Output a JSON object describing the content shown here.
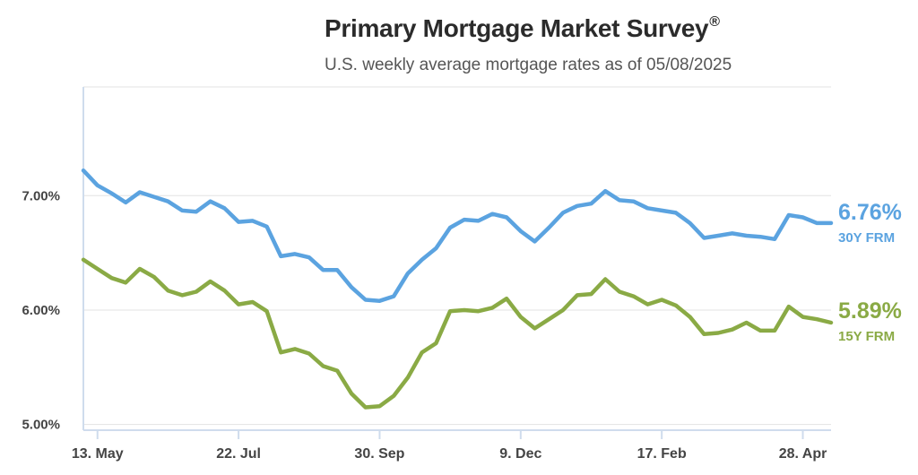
{
  "header": {
    "title": "Primary Mortgage Market Survey",
    "title_mark": "®",
    "subtitle": "U.S. weekly average mortgage rates as of 05/08/2025"
  },
  "chart_data": {
    "type": "line",
    "title": "Primary Mortgage Market Survey®",
    "subtitle": "U.S. weekly average mortgage rates as of 05/08/2025",
    "ylim": [
      4.95,
      7.95
    ],
    "yticks": [
      5.0,
      6.0,
      7.0
    ],
    "ytick_labels": [
      "5.00%",
      "6.00%",
      "7.00%"
    ],
    "xtick_labels": [
      "13. May",
      "22. Jul",
      "30. Sep",
      "9. Dec",
      "17. Feb",
      "28. Apr"
    ],
    "xtick_index": [
      1,
      11,
      21,
      31,
      41,
      51
    ],
    "grid": true,
    "series": [
      {
        "name": "30Y FRM",
        "color": "#5ba3e0",
        "end_label": "6.76%",
        "values": [
          7.22,
          7.09,
          7.02,
          6.94,
          7.03,
          6.99,
          6.95,
          6.87,
          6.86,
          6.95,
          6.89,
          6.77,
          6.78,
          6.73,
          6.47,
          6.49,
          6.46,
          6.35,
          6.35,
          6.2,
          6.09,
          6.08,
          6.12,
          6.32,
          6.44,
          6.54,
          6.72,
          6.79,
          6.78,
          6.84,
          6.81,
          6.69,
          6.6,
          6.72,
          6.85,
          6.91,
          6.93,
          7.04,
          6.96,
          6.95,
          6.89,
          6.87,
          6.85,
          6.76,
          6.63,
          6.65,
          6.67,
          6.65,
          6.64,
          6.62,
          6.83,
          6.81,
          6.76,
          6.76
        ]
      },
      {
        "name": "15Y FRM",
        "color": "#8aaa45",
        "end_label": "5.89%",
        "values": [
          6.44,
          6.36,
          6.28,
          6.24,
          6.36,
          6.29,
          6.17,
          6.13,
          6.16,
          6.25,
          6.17,
          6.05,
          6.07,
          5.99,
          5.63,
          5.66,
          5.62,
          5.51,
          5.47,
          5.27,
          5.15,
          5.16,
          5.25,
          5.41,
          5.63,
          5.71,
          5.99,
          6.0,
          5.99,
          6.02,
          6.1,
          5.94,
          5.84,
          5.92,
          6.0,
          6.13,
          6.14,
          6.27,
          6.16,
          6.12,
          6.05,
          6.09,
          6.04,
          5.94,
          5.79,
          5.8,
          5.83,
          5.89,
          5.82,
          5.82,
          6.03,
          5.94,
          5.92,
          5.89
        ]
      }
    ]
  }
}
